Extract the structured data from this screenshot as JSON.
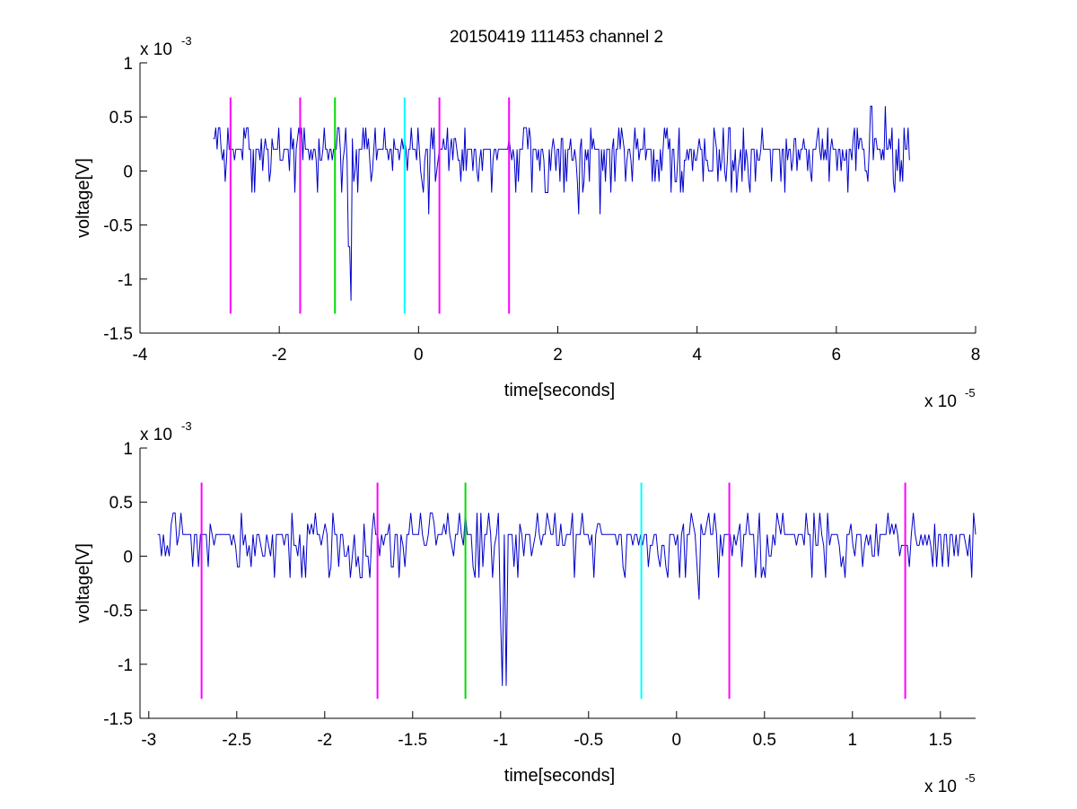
{
  "title": "20150419 111453 channel 2",
  "colors": {
    "signal": "#0000cc",
    "magenta": "#ff00ff",
    "green": "#00dd00",
    "cyan": "#00ffff",
    "axis": "#000000",
    "background": "#ffffff"
  },
  "chart_data": [
    {
      "type": "line",
      "title": "20150419 111453 channel 2",
      "xlabel": "time[seconds]",
      "ylabel": "voltage[V]",
      "x_multiplier": "x 10",
      "x_exponent": "-5",
      "y_multiplier": "x 10",
      "y_exponent": "-3",
      "xlim": [
        -4,
        8
      ],
      "ylim": [
        -1.5,
        1
      ],
      "x_ticks": [
        -4,
        -2,
        0,
        2,
        4,
        6,
        8
      ],
      "x_tick_labels": [
        "-4",
        "-2",
        "0",
        "2",
        "4",
        "6",
        "8"
      ],
      "y_ticks": [
        -1.5,
        -1,
        -0.5,
        0,
        0.5,
        1
      ],
      "y_tick_labels": [
        "-1.5",
        "-1",
        "-0.5",
        "0",
        "0.5",
        "1"
      ],
      "grid": false,
      "signal": {
        "color": "#0000cc",
        "x_range": [
          -2.95,
          7.05
        ],
        "baseline": 0.2,
        "spikes": [
          {
            "x": -0.98,
            "y": -1.2
          },
          {
            "x": -1.0,
            "y": -0.7
          },
          {
            "x": 0.15,
            "y": -0.4
          },
          {
            "x": 2.3,
            "y": -0.4
          },
          {
            "x": 2.6,
            "y": -0.4
          },
          {
            "x": 6.5,
            "y": 0.6
          },
          {
            "x": 6.7,
            "y": 0.6
          },
          {
            "x": 6.8,
            "y": 0.4
          }
        ]
      },
      "markers": [
        {
          "x": -2.7,
          "color": "#ff00ff",
          "y_top": 0.68,
          "y_bottom": -1.32
        },
        {
          "x": -1.7,
          "color": "#ff00ff",
          "y_top": 0.68,
          "y_bottom": -1.32
        },
        {
          "x": -1.2,
          "color": "#00dd00",
          "y_top": 0.68,
          "y_bottom": -1.32
        },
        {
          "x": -0.2,
          "color": "#00ffff",
          "y_top": 0.68,
          "y_bottom": -1.32
        },
        {
          "x": 0.3,
          "color": "#ff00ff",
          "y_top": 0.68,
          "y_bottom": -1.32
        },
        {
          "x": 1.3,
          "color": "#ff00ff",
          "y_top": 0.68,
          "y_bottom": -1.32
        }
      ]
    },
    {
      "type": "line",
      "title": "",
      "xlabel": "time[seconds]",
      "ylabel": "voltage[V]",
      "x_multiplier": "x 10",
      "x_exponent": "-5",
      "y_multiplier": "x 10",
      "y_exponent": "-3",
      "xlim": [
        -3.05,
        1.7
      ],
      "ylim": [
        -1.5,
        1
      ],
      "x_ticks": [
        -3,
        -2.5,
        -2,
        -1.5,
        -1,
        -0.5,
        0,
        0.5,
        1,
        1.5
      ],
      "x_tick_labels": [
        "-3",
        "-2.5",
        "-2",
        "-1.5",
        "-1",
        "-0.5",
        "0",
        "0.5",
        "1",
        "1.5"
      ],
      "y_ticks": [
        -1.5,
        -1,
        -0.5,
        0,
        0.5,
        1
      ],
      "y_tick_labels": [
        "-1.5",
        "-1",
        "-0.5",
        "0",
        "0.5",
        "1"
      ],
      "grid": false,
      "signal": {
        "color": "#0000cc",
        "x_range": [
          -2.95,
          1.7
        ],
        "baseline": 0.2,
        "spikes": [
          {
            "x": -0.99,
            "y": -1.2
          },
          {
            "x": -0.97,
            "y": -1.2
          },
          {
            "x": -1.0,
            "y": -0.5
          },
          {
            "x": 0.13,
            "y": -0.4
          },
          {
            "x": -2.2,
            "y": -0.2
          },
          {
            "x": 1.35,
            "y": 0.4
          }
        ]
      },
      "markers": [
        {
          "x": -2.7,
          "color": "#ff00ff",
          "y_top": 0.68,
          "y_bottom": -1.32
        },
        {
          "x": -1.7,
          "color": "#ff00ff",
          "y_top": 0.68,
          "y_bottom": -1.32
        },
        {
          "x": -1.2,
          "color": "#00dd00",
          "y_top": 0.68,
          "y_bottom": -1.32
        },
        {
          "x": -0.2,
          "color": "#00ffff",
          "y_top": 0.68,
          "y_bottom": -1.32
        },
        {
          "x": 0.3,
          "color": "#ff00ff",
          "y_top": 0.68,
          "y_bottom": -1.32
        },
        {
          "x": 1.3,
          "color": "#ff00ff",
          "y_top": 0.68,
          "y_bottom": -1.32
        }
      ]
    }
  ]
}
